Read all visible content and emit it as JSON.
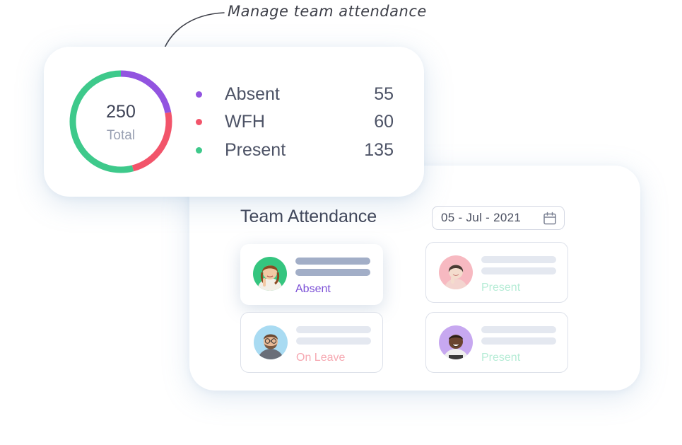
{
  "callout": {
    "text": "Manage team attendance"
  },
  "summary": {
    "total": "250",
    "total_label": "Total",
    "legend": [
      {
        "label": "Absent",
        "value": "55",
        "color": "#9254e0"
      },
      {
        "label": "WFH",
        "value": "60",
        "color": "#f2546a"
      },
      {
        "label": "Present",
        "value": "135",
        "color": "#3ec98b"
      }
    ]
  },
  "chart_data": {
    "type": "pie",
    "categories": [
      "Absent",
      "WFH",
      "Present"
    ],
    "values": [
      55,
      60,
      135
    ],
    "colors": [
      "#9254e0",
      "#f2546a",
      "#3ec98b"
    ],
    "title": "",
    "donut": true,
    "center_text": "250",
    "center_subtext": "Total"
  },
  "attendance": {
    "title": "Team Attendance",
    "date": "05 - Jul - 2021",
    "employees": [
      {
        "status": "Absent",
        "status_color": "#7b4fd6",
        "avatar_bg": "#35c57f",
        "avatar": "woman-avatar",
        "selected": true
      },
      {
        "status": "Present",
        "status_color": "#b6ecd6",
        "avatar_bg": "#f7b9c1",
        "avatar": "woman-avatar",
        "selected": false
      },
      {
        "status": "On Leave",
        "status_color": "#f6a9b2",
        "avatar_bg": "#a9dbf2",
        "avatar": "man-avatar",
        "selected": false
      },
      {
        "status": "Present",
        "status_color": "#b6ecd6",
        "avatar_bg": "#c7a8f0",
        "avatar": "man-avatar",
        "selected": false
      }
    ]
  }
}
